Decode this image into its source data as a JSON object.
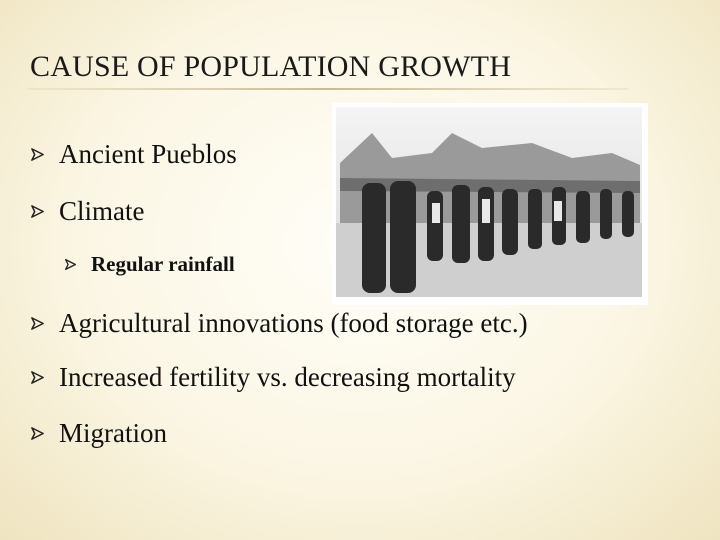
{
  "title": "CAUSE OF POPULATION GROWTH",
  "bullets": [
    {
      "text": "Ancient Pueblos"
    },
    {
      "text": "Climate",
      "items": [
        "Regular rainfall"
      ]
    },
    {
      "text": "Agricultural innovations (food storage etc.)"
    },
    {
      "text": "Increased fertility vs. decreasing mortality"
    },
    {
      "text": "Migration"
    }
  ]
}
